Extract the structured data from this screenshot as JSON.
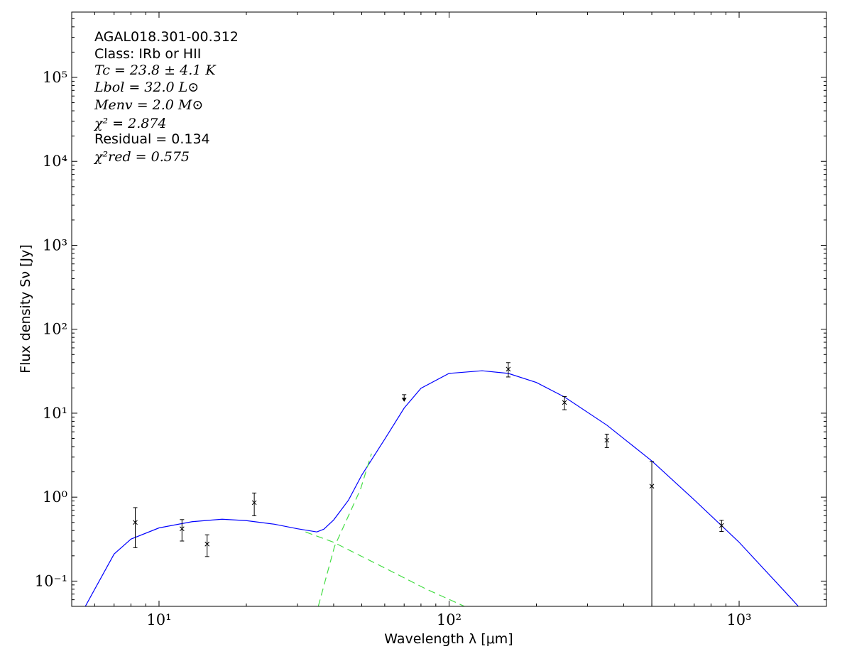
{
  "chart_data": {
    "type": "scatter",
    "xlabel": "Wavelength λ [μm]",
    "ylabel": "Flux density Sν [Jy]",
    "annotations": [
      "AGAL018.301-00.312",
      "Class: IRb or HII",
      "Tc = 23.8 ± 4.1 K",
      "Lbol = 32.0 L⊙",
      "Menv = 2.0 M⊙",
      "χ² = 2.874",
      "Residual = 0.134",
      "χ²red = 0.575"
    ],
    "xscale": "log",
    "yscale": "log",
    "xlim": [
      5,
      2000
    ],
    "ylim": [
      0.05,
      600000
    ],
    "xticks": [
      {
        "value": 10,
        "label": "10¹"
      },
      {
        "value": 100,
        "label": "10²"
      },
      {
        "value": 1000,
        "label": "10³"
      }
    ],
    "yticks": [
      {
        "value": 0.1,
        "label": "10⁻¹"
      },
      {
        "value": 1,
        "label": "10⁰"
      },
      {
        "value": 10,
        "label": "10¹"
      },
      {
        "value": 100,
        "label": "10²"
      },
      {
        "value": 1000,
        "label": "10³"
      },
      {
        "value": 10000,
        "label": "10⁴"
      },
      {
        "value": 100000,
        "label": "10⁵"
      }
    ],
    "xminorticks": [
      6,
      7,
      8,
      9,
      20,
      30,
      40,
      50,
      60,
      70,
      80,
      90,
      200,
      300,
      400,
      500,
      600,
      700,
      800,
      900
    ],
    "yminorticks": [
      0.06,
      0.07,
      0.08,
      0.09,
      0.2,
      0.3,
      0.4,
      0.5,
      0.6,
      0.7,
      0.8,
      0.9,
      2,
      3,
      4,
      5,
      6,
      7,
      8,
      9,
      20,
      30,
      40,
      50,
      60,
      70,
      80,
      90,
      200,
      300,
      400,
      500,
      600,
      700,
      800,
      900,
      2000,
      3000,
      4000,
      5000,
      6000,
      7000,
      8000,
      9000,
      20000,
      30000,
      40000,
      50000,
      60000,
      70000,
      80000,
      90000,
      200000,
      300000,
      400000,
      500000
    ],
    "series": [
      {
        "kind": "points",
        "marker": "x",
        "color": "#000000",
        "x": [
          8.28,
          12,
          14.65,
          21.3,
          160,
          250,
          350,
          500,
          870
        ],
        "values": [
          0.5,
          0.42,
          0.276,
          0.86,
          33.5,
          13.4,
          4.76,
          1.35,
          0.46
        ],
        "errors": [
          0.25,
          0.12,
          0.08,
          0.26,
          6.5,
          2.4,
          0.87,
          1.3,
          0.07
        ]
      },
      {
        "kind": "upper-limits",
        "marker": "arrow-down",
        "color": "#000000",
        "x": [
          70
        ],
        "values": [
          16.6
        ]
      },
      {
        "kind": "line",
        "style": "solid",
        "color": "#0000ff",
        "x": [
          5.57,
          7,
          8,
          10,
          13,
          16.5,
          20,
          25,
          30,
          35,
          37,
          40,
          45,
          50,
          60,
          70,
          80,
          100,
          130,
          160,
          200,
          250,
          350,
          500,
          700,
          1000,
          1500,
          1600
        ],
        "values": [
          0.05,
          0.21,
          0.316,
          0.43,
          0.51,
          0.546,
          0.525,
          0.476,
          0.42,
          0.385,
          0.415,
          0.535,
          0.92,
          1.83,
          4.9,
          11.5,
          19.8,
          29.8,
          32,
          29.8,
          23.2,
          15.6,
          7.2,
          2.7,
          0.93,
          0.29,
          0.064,
          0.05
        ]
      },
      {
        "kind": "line",
        "style": "dashed",
        "color": "#44dd44",
        "x": [
          35.4,
          40.3,
          45,
          49.5,
          54
        ],
        "values": [
          0.05,
          0.26,
          0.6,
          1.24,
          3.3
        ]
      },
      {
        "kind": "line",
        "style": "dashed",
        "color": "#44dd44",
        "x": [
          32,
          40,
          59.6,
          83,
          113
        ],
        "values": [
          0.385,
          0.29,
          0.145,
          0.081,
          0.05
        ]
      }
    ]
  }
}
